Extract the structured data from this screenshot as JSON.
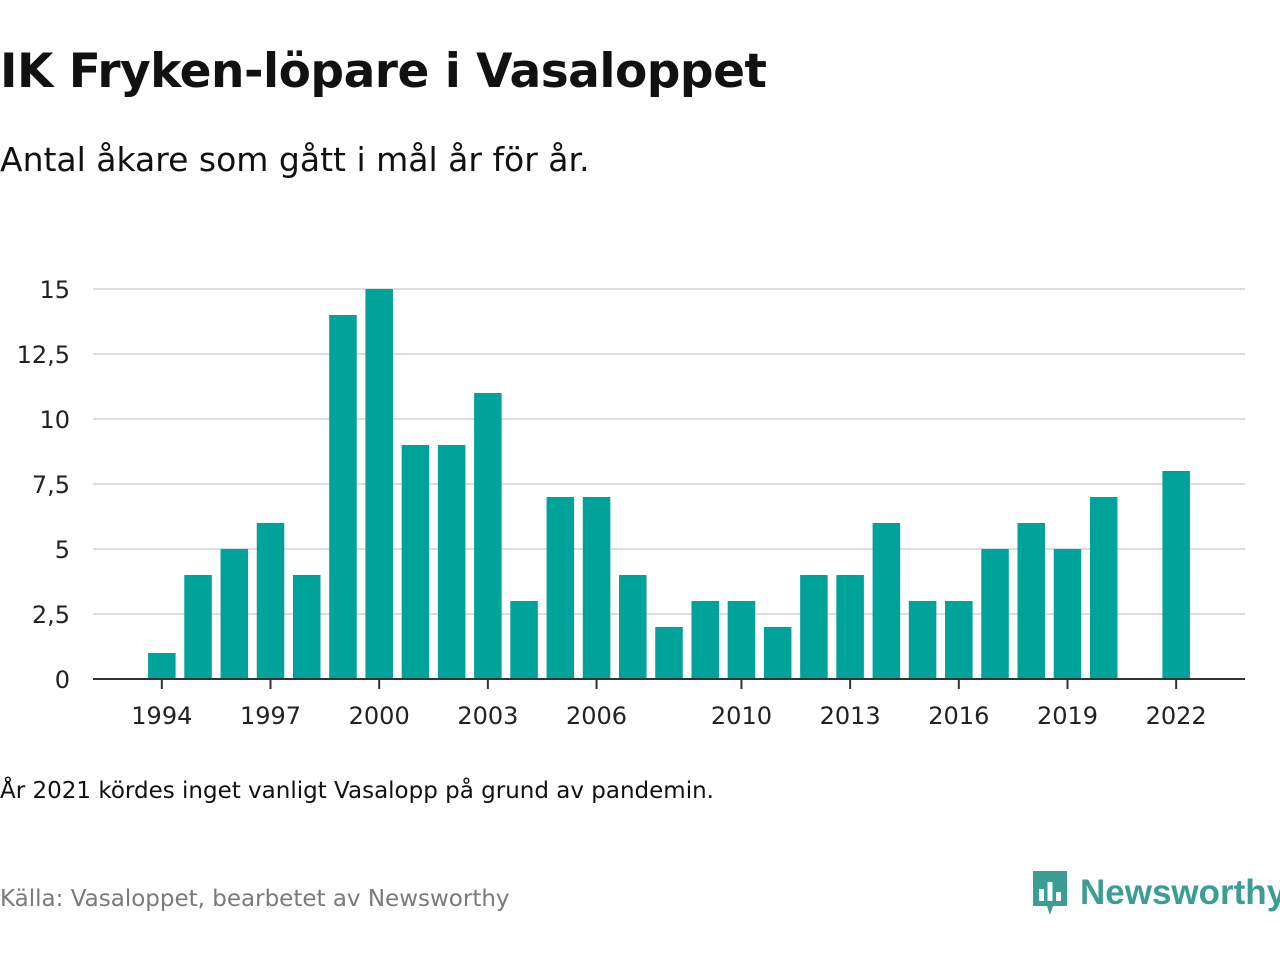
{
  "title": "IK Fryken-löpare i Vasaloppet",
  "subtitle": "Antal åkare som gått i mål år för år.",
  "note": "År 2021 kördes inget vanligt Vasalopp på grund av pandemin.",
  "source": "Källa: Vasaloppet, bearbetet av Newsworthy",
  "brand": {
    "name": "Newsworthy",
    "icon": "newsworthy-logo-icon",
    "color": "#3a9e93"
  },
  "colors": {
    "bar": "#00a39a",
    "grid": "#dddddd",
    "axis": "#333333"
  },
  "chart_data": {
    "type": "bar",
    "x": [
      1994,
      1995,
      1996,
      1997,
      1998,
      1999,
      2000,
      2001,
      2002,
      2003,
      2004,
      2005,
      2006,
      2007,
      2008,
      2009,
      2010,
      2011,
      2012,
      2013,
      2014,
      2015,
      2016,
      2017,
      2018,
      2019,
      2020,
      2022
    ],
    "values": [
      1,
      4,
      5,
      6,
      4,
      14,
      15,
      9,
      9,
      11,
      3,
      7,
      7,
      4,
      2,
      3,
      3,
      2,
      4,
      4,
      6,
      3,
      3,
      5,
      6,
      5,
      7,
      8
    ],
    "xlim": [
      1992.1,
      2023.9
    ],
    "ylim": [
      0,
      15
    ],
    "yticks": [
      0,
      2.5,
      5,
      7.5,
      10,
      12.5,
      15
    ],
    "ytick_labels": [
      "0",
      "2,5",
      "5",
      "7,5",
      "10",
      "12,5",
      "15"
    ],
    "xticks": [
      1994,
      1997,
      2000,
      2003,
      2006,
      2010,
      2013,
      2016,
      2019,
      2022
    ],
    "xtick_labels": [
      "1994",
      "1997",
      "2000",
      "2003",
      "2006",
      "2010",
      "2013",
      "2016",
      "2019",
      "2022"
    ],
    "grid": true
  }
}
